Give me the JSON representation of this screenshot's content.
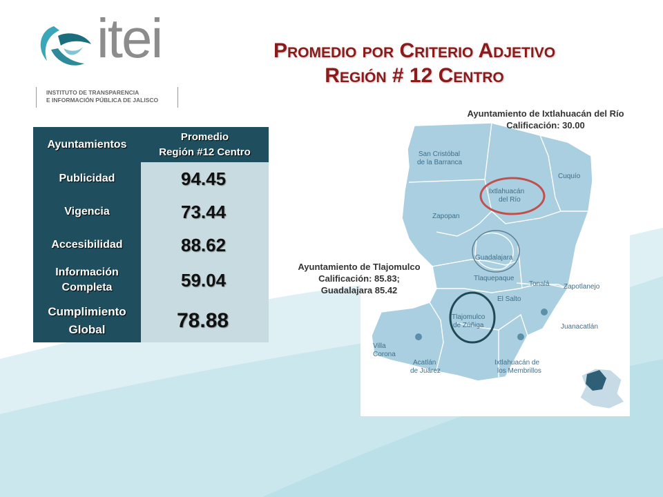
{
  "logo": {
    "word": "itei",
    "sub_line1": "INSTITUTO DE TRANSPARENCIA",
    "sub_line2": "E INFORMACIÓN PÚBLICA DE JALISCO"
  },
  "title": {
    "line1": "Promedio por Criterio Adjetivo",
    "line2": "Región # 12  Centro"
  },
  "table": {
    "header_left": "Ayuntamientos",
    "header_right_line1": "Promedio",
    "header_right_line2": "Región #12 Centro",
    "rows": [
      {
        "label_line1": "Publicidad",
        "label_line2": "",
        "value": "94.45"
      },
      {
        "label_line1": "Vigencia",
        "label_line2": "",
        "value": "73.44"
      },
      {
        "label_line1": "Accesibilidad",
        "label_line2": "",
        "value": "88.62"
      },
      {
        "label_line1": "Información",
        "label_line2": "Completa",
        "value": "59.04"
      },
      {
        "label_line1": "Cumplimiento",
        "label_line2": "Global",
        "value": "78.88"
      }
    ]
  },
  "annotations": {
    "ixtlahuacan": {
      "line1": "Ayuntamiento de Ixtlahuacán del Río",
      "line2": "Calificación: 30.00"
    },
    "tlajomulco": {
      "line1": "Ayuntamiento de Tlajomulco",
      "line2": "Calificación: 85.83;",
      "line3": "Guadalajara 85.42"
    }
  },
  "map": {
    "labels": {
      "san_cristobal_1": "San Cristóbal",
      "san_cristobal_2": "de la Barranca",
      "ixtlahuacan_1": "Ixtlahuacán",
      "ixtlahuacan_2": "del Río",
      "cuquio": "Cuquío",
      "zapopan": "Zapopan",
      "guadalajara": "Guadalajara",
      "tlaquepaque": "Tlaquepaque",
      "tonala": "Tonalá",
      "zapotlanejo": "Zapotlanejo",
      "el_salto": "El Salto",
      "tlajomulco_1": "Tlajomulco",
      "tlajomulco_2": "de Zúñiga",
      "juanacatlan": "Juanacatlán",
      "villa_corona_1": "Villa",
      "villa_corona_2": "Corona",
      "acatlan_1": "Acatlán",
      "acatlan_2": "de Juárez",
      "ixtlahuacan_m_1": "Ixtlahuacán de",
      "ixtlahuacan_m_2": "los Membrillos"
    }
  },
  "colors": {
    "title": "#8b1a1a",
    "table_dark": "#1f4f5f",
    "table_light": "#c8dbe0",
    "map_fill": "#a9cfe0",
    "highlight_red": "#c0504d",
    "highlight_dark": "#1f4a55"
  }
}
